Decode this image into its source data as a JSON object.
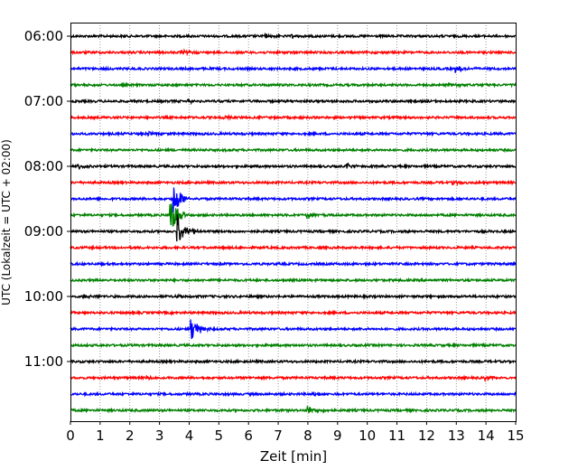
{
  "chart_data": {
    "type": "line",
    "title": "",
    "xlabel": "Zeit  [min]",
    "ylabel": "UTC (Lokalzeit = UTC + 02:00)",
    "xlim": [
      0,
      15
    ],
    "x_ticks": [
      "0",
      "1",
      "2",
      "3",
      "4",
      "5",
      "6",
      "7",
      "8",
      "9",
      "10",
      "11",
      "12",
      "13",
      "14",
      "15"
    ],
    "y_tick_labels": [
      "06:00",
      "07:00",
      "08:00",
      "09:00",
      "10:00",
      "11:00"
    ],
    "grid": "vertical-dotted",
    "trace_interval_min": 15,
    "start_time": "06:00",
    "trace_colors": [
      "#000000",
      "#ff0000",
      "#0000ff",
      "#008000"
    ],
    "traces": [
      {
        "start": "06:00",
        "events": [
          {
            "t": 6.6,
            "amp": 2
          },
          {
            "t": 7.5,
            "amp": 2
          }
        ]
      },
      {
        "start": "06:15",
        "events": [
          {
            "t": 3.8,
            "amp": 2
          }
        ]
      },
      {
        "start": "06:30",
        "events": [
          {
            "t": 13.0,
            "amp": 5
          }
        ]
      },
      {
        "start": "06:45",
        "events": [
          {
            "t": 12.8,
            "amp": 2
          }
        ]
      },
      {
        "start": "07:00",
        "events": [
          {
            "t": 4.0,
            "amp": 2
          }
        ]
      },
      {
        "start": "07:15",
        "events": [
          {
            "t": 5.2,
            "amp": 2
          }
        ]
      },
      {
        "start": "07:30",
        "events": [
          {
            "t": 2.6,
            "amp": 2
          }
        ]
      },
      {
        "start": "07:45",
        "events": []
      },
      {
        "start": "08:00",
        "events": [
          {
            "t": 0.3,
            "amp": 3
          },
          {
            "t": 9.3,
            "amp": 3
          }
        ]
      },
      {
        "start": "08:15",
        "events": [
          {
            "t": 12.9,
            "amp": 2
          }
        ]
      },
      {
        "start": "08:30",
        "events": [
          {
            "t": 3.5,
            "amp": 18
          }
        ]
      },
      {
        "start": "08:45",
        "events": [
          {
            "t": 3.4,
            "amp": 18
          },
          {
            "t": 8.0,
            "amp": 4
          }
        ]
      },
      {
        "start": "09:00",
        "events": [
          {
            "t": 3.6,
            "amp": 22
          }
        ]
      },
      {
        "start": "09:15",
        "events": []
      },
      {
        "start": "09:30",
        "events": []
      },
      {
        "start": "09:45",
        "events": []
      },
      {
        "start": "10:00",
        "events": [
          {
            "t": 0.5,
            "amp": 3
          },
          {
            "t": 3.5,
            "amp": 2
          }
        ]
      },
      {
        "start": "10:15",
        "events": []
      },
      {
        "start": "10:30",
        "events": [
          {
            "t": 4.1,
            "amp": 13
          }
        ]
      },
      {
        "start": "10:45",
        "events": []
      },
      {
        "start": "11:00",
        "events": []
      },
      {
        "start": "11:15",
        "events": [
          {
            "t": 2.6,
            "amp": 2
          },
          {
            "t": 14.0,
            "amp": 2
          }
        ]
      },
      {
        "start": "11:30",
        "events": [
          {
            "t": 8.2,
            "amp": 2
          }
        ]
      },
      {
        "start": "11:45",
        "events": [
          {
            "t": 8.0,
            "amp": 6
          }
        ]
      }
    ]
  }
}
